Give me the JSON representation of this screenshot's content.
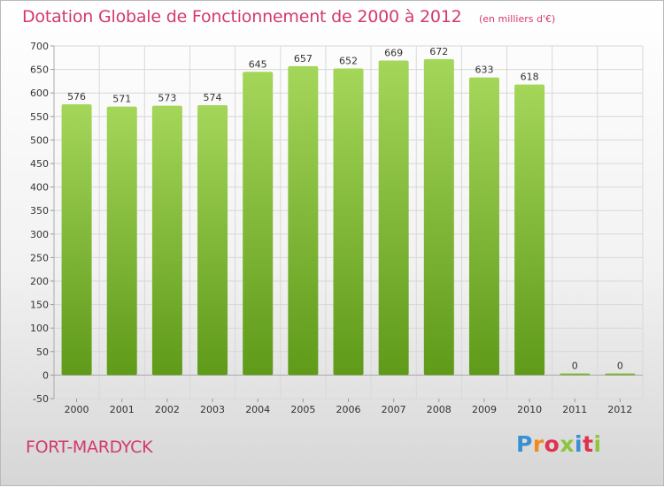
{
  "title": "Dotation Globale de Fonctionnement de 2000 à 2012",
  "unit": "(en milliers d'€)",
  "commune": "FORT-MARDYCK",
  "logo": {
    "text": "Proxiti",
    "letter_colors": [
      "#3a8fd1",
      "#f28a1e",
      "#e0334f",
      "#8cc63f",
      "#3a8fd1",
      "#e0334f",
      "#8cc63f"
    ]
  },
  "colors": {
    "title": "#d33a6a",
    "bar_light": "#a4d65a",
    "bar_dark": "#5f9a19",
    "grid": "#d8d8d8"
  },
  "chart_data": {
    "type": "bar",
    "title": "Dotation Globale de Fonctionnement de 2000 à 2012",
    "categories": [
      "2000",
      "2001",
      "2002",
      "2003",
      "2004",
      "2005",
      "2006",
      "2007",
      "2008",
      "2009",
      "2010",
      "2011",
      "2012"
    ],
    "values": [
      576,
      571,
      573,
      574,
      645,
      657,
      652,
      669,
      672,
      633,
      618,
      0,
      0
    ],
    "data_labels": [
      "576",
      "571",
      "573",
      "574",
      "645",
      "657",
      "652",
      "669",
      "672",
      "633",
      "618",
      "0",
      "0"
    ],
    "yticks": [
      "-50",
      "0",
      "50",
      "100",
      "150",
      "200",
      "250",
      "300",
      "350",
      "400",
      "450",
      "500",
      "550",
      "600",
      "650",
      "700"
    ],
    "ylim": [
      -50,
      700
    ],
    "grid": true,
    "legend": "none"
  }
}
